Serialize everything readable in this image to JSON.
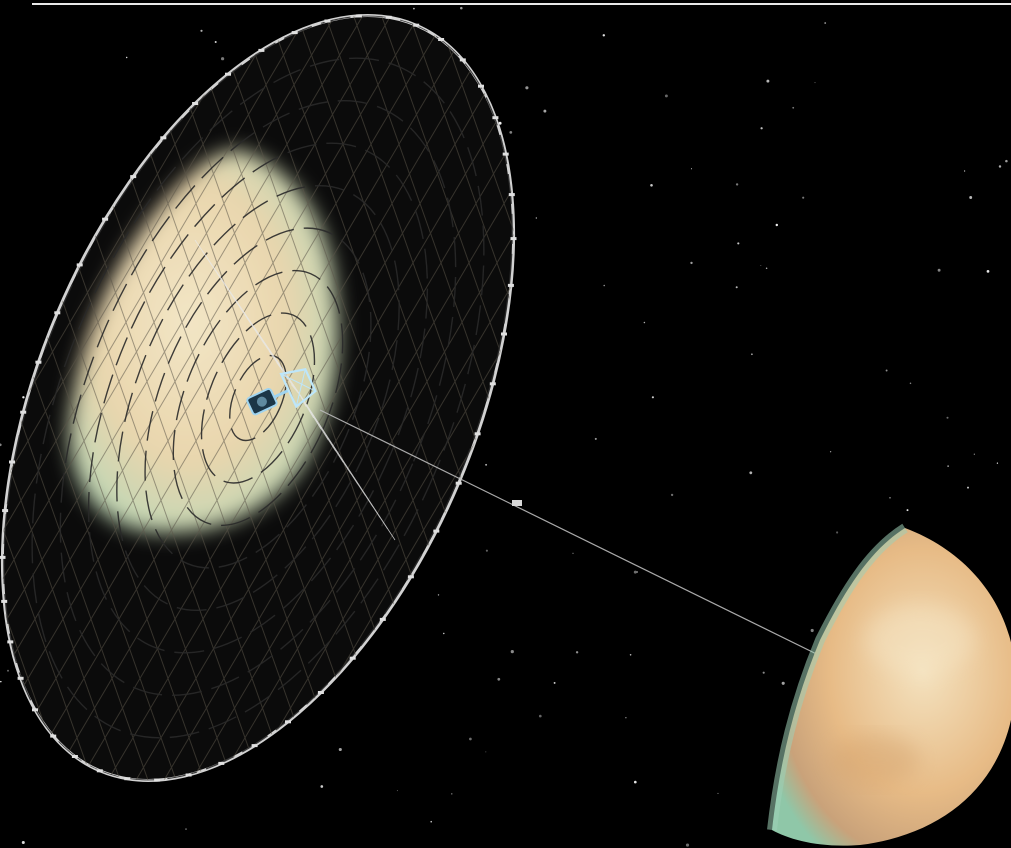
{
  "scene": {
    "subject_icons": [
      "star-field",
      "mirror-sail-reflector",
      "spacecraft",
      "tether-beam",
      "planet-crescent"
    ],
    "colors": {
      "space": "#000000",
      "sail_shadow": "#0c0c0c",
      "sail_lit": "#efe2bf",
      "sail_lit_edge": "#c8dcb8",
      "sail_rim": "#cfcfcf",
      "craft": "#9fd4f0",
      "planet_light": "#f3dfb8",
      "planet_warm": "#d9a36a",
      "planet_shadow_tint": "#9ccfb0"
    }
  }
}
